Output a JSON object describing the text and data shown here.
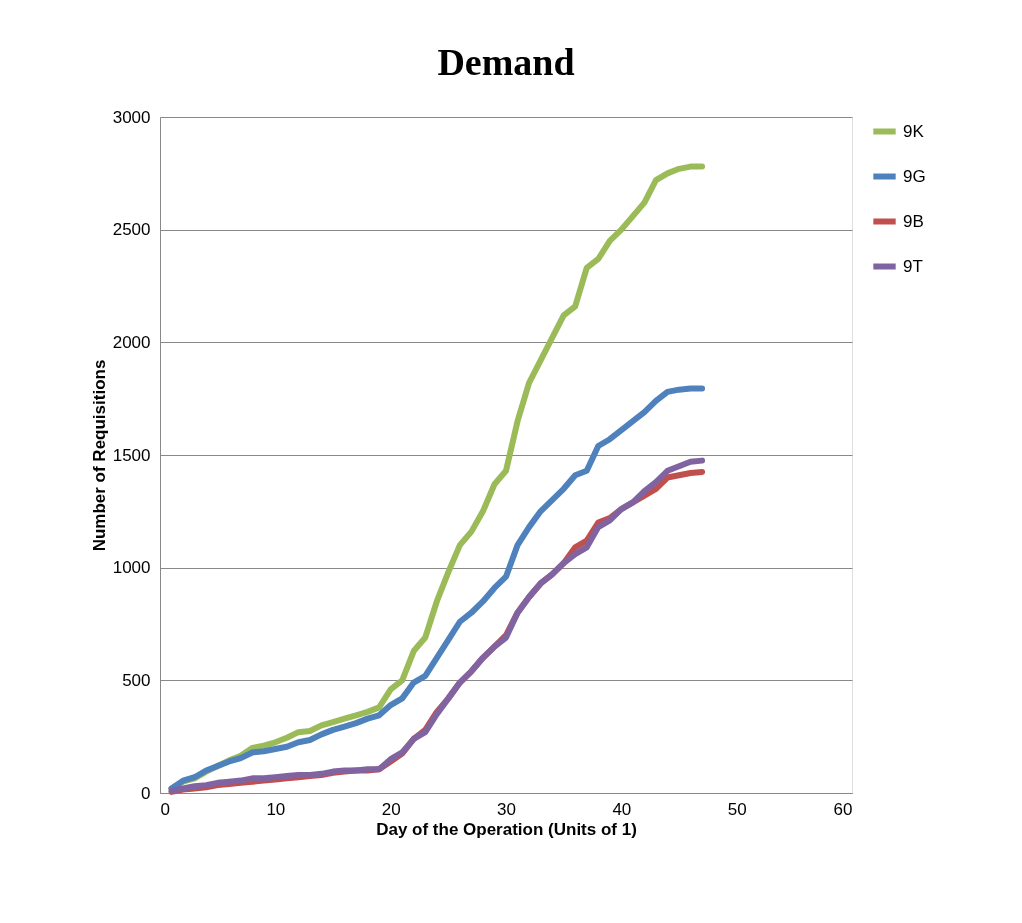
{
  "chart_data": {
    "type": "line",
    "title": "Demand",
    "xlabel": "Day of the Operation (Units of 1)",
    "ylabel": "Number of Requisitions",
    "x": [
      1,
      2,
      3,
      4,
      5,
      6,
      7,
      8,
      9,
      10,
      11,
      12,
      13,
      14,
      15,
      16,
      17,
      18,
      19,
      20,
      21,
      22,
      23,
      24,
      25,
      26,
      27,
      28,
      29,
      30,
      31,
      32,
      33,
      34,
      35,
      36,
      37,
      38,
      39,
      40,
      41,
      42,
      43,
      44,
      45,
      46,
      47
    ],
    "series": [
      {
        "name": "9K",
        "color": "#9bbb59",
        "values": [
          20,
          50,
          65,
          95,
          120,
          145,
          165,
          200,
          210,
          225,
          245,
          270,
          275,
          300,
          315,
          330,
          345,
          360,
          380,
          460,
          500,
          630,
          690,
          850,
          980,
          1100,
          1160,
          1250,
          1370,
          1430,
          1650,
          1820,
          1920,
          2020,
          2120,
          2160,
          2330,
          2370,
          2450,
          2500,
          2560,
          2620,
          2720,
          2750,
          2770,
          2780,
          2780
        ]
      },
      {
        "name": "9G",
        "color": "#4f81bd",
        "values": [
          20,
          55,
          70,
          100,
          120,
          140,
          155,
          180,
          185,
          195,
          205,
          225,
          235,
          260,
          280,
          295,
          310,
          330,
          345,
          390,
          420,
          490,
          520,
          600,
          680,
          760,
          800,
          850,
          910,
          960,
          1100,
          1180,
          1250,
          1300,
          1350,
          1410,
          1430,
          1540,
          1570,
          1610,
          1650,
          1690,
          1740,
          1780,
          1790,
          1795,
          1795
        ]
      },
      {
        "name": "9B",
        "color": "#c0504d",
        "values": [
          5,
          15,
          20,
          25,
          35,
          40,
          45,
          50,
          55,
          60,
          65,
          70,
          75,
          80,
          90,
          95,
          100,
          100,
          105,
          140,
          175,
          240,
          280,
          360,
          420,
          490,
          540,
          600,
          650,
          700,
          800,
          870,
          930,
          970,
          1020,
          1090,
          1120,
          1200,
          1220,
          1260,
          1290,
          1320,
          1350,
          1400,
          1410,
          1420,
          1425
        ]
      },
      {
        "name": "9T",
        "color": "#8064a2",
        "values": [
          10,
          20,
          30,
          35,
          45,
          50,
          55,
          65,
          65,
          70,
          75,
          80,
          80,
          85,
          95,
          100,
          100,
          105,
          105,
          150,
          180,
          240,
          270,
          350,
          420,
          490,
          540,
          600,
          650,
          690,
          800,
          870,
          930,
          970,
          1020,
          1060,
          1090,
          1180,
          1210,
          1260,
          1290,
          1340,
          1380,
          1430,
          1450,
          1470,
          1475
        ]
      }
    ],
    "xlim": [
      0,
      60
    ],
    "xticks": [
      0,
      10,
      20,
      30,
      40,
      50,
      60
    ],
    "ylim": [
      0,
      3000
    ],
    "yticks": [
      0,
      500,
      1000,
      1500,
      2000,
      2500,
      3000
    ],
    "grid": "y",
    "legend": "right",
    "marker": "none",
    "line_style": "solid"
  }
}
